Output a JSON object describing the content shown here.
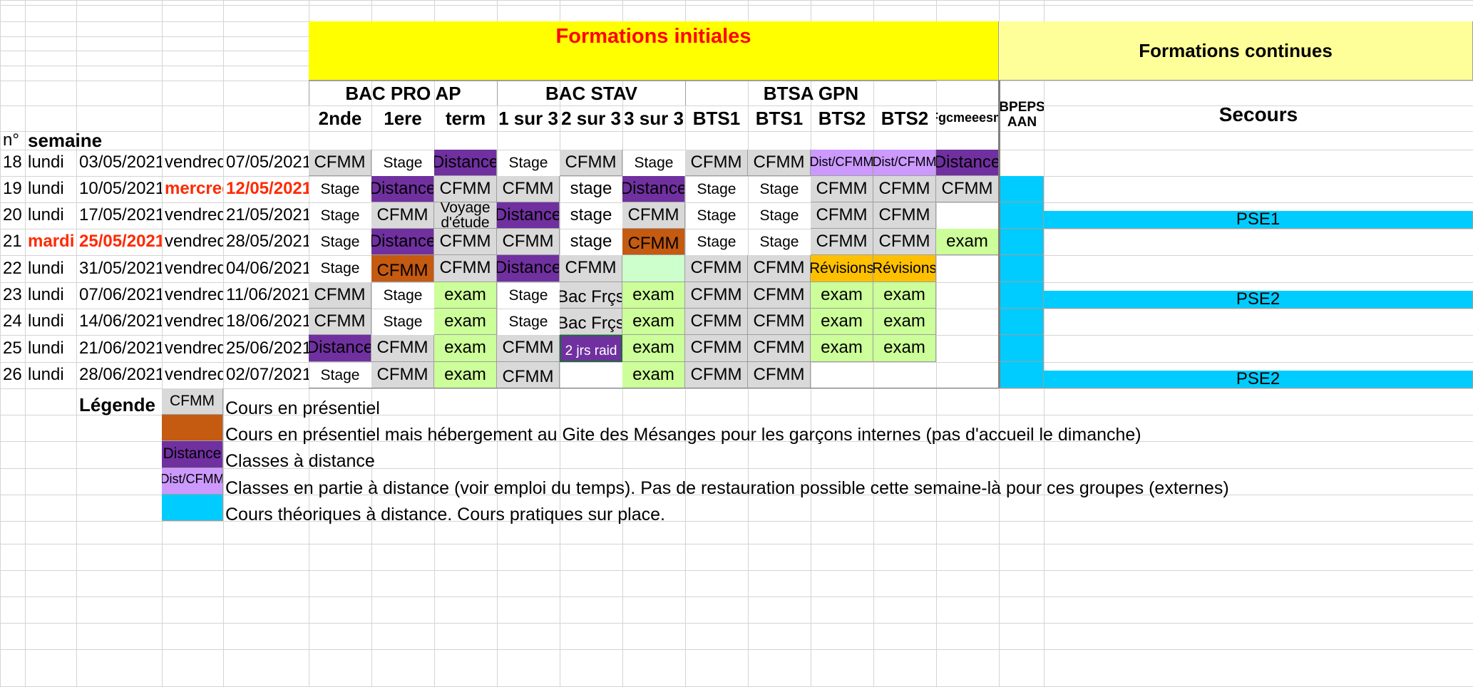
{
  "title_initiales": "Formations initiales",
  "title_continues": "Formations continues",
  "group_headers": [
    "BAC PRO AP",
    "BAC STAV",
    "BTSA GPN"
  ],
  "sub_headers": [
    "2nde",
    "1ere",
    "term",
    "1 sur 3",
    "2 sur 3",
    "3 sur 3",
    "BTS1",
    "BTS1",
    "BTS2",
    "BTS2",
    "Fgcmeeesm"
  ],
  "continues_headers": [
    "BPEPS AAN",
    "Secours"
  ],
  "label_n": "n°",
  "label_semaine": "semaine",
  "colors": {
    "CFMM": "#d9d9d9",
    "Distance": "#7030a0",
    "DistCFMM": "#cc99ff",
    "Gite": "#c55a11",
    "Exam": "#ccff99",
    "Revisions": "#ffc000",
    "Light": "#ccffcc",
    "Theorique": "#00ccff",
    "Header": "#ffff00",
    "Continues": "#ffff99"
  },
  "rows": [
    {
      "n": "18",
      "day1": "lundi",
      "date1": "03/05/2021",
      "day2": "vendredi",
      "date2": "07/05/2021",
      "cells": [
        [
          "CFMM",
          "CFMM"
        ],
        [
          "Stage",
          ""
        ],
        [
          "Distance",
          "Distance"
        ],
        [
          "Stage",
          ""
        ],
        [
          "CFMM",
          "CFMM"
        ],
        [
          "Stage",
          ""
        ],
        [
          "CFMM",
          "CFMM"
        ],
        [
          "CFMM",
          "CFMM"
        ],
        [
          "Dist/CFMM",
          "DistCFMM"
        ],
        [
          "Dist/CFMM",
          "DistCFMM"
        ],
        [
          "Distance",
          "Distance"
        ]
      ],
      "bpeps": "",
      "secours": ""
    },
    {
      "n": "19",
      "day1": "lundi",
      "date1": "10/05/2021",
      "day2": "mercred",
      "date2": "12/05/2021",
      "red2": true,
      "cells": [
        [
          "Stage",
          ""
        ],
        [
          "Distance",
          "Distance"
        ],
        [
          "CFMM",
          "CFMM"
        ],
        [
          "CFMM",
          "CFMM"
        ],
        [
          "stage",
          ""
        ],
        [
          "Distance",
          "Distance"
        ],
        [
          "Stage",
          ""
        ],
        [
          "Stage",
          ""
        ],
        [
          "CFMM",
          "CFMM"
        ],
        [
          "CFMM",
          "CFMM"
        ],
        [
          "CFMM",
          "CFMM"
        ]
      ],
      "bpeps": "Theorique",
      "secours": ""
    },
    {
      "n": "20",
      "day1": "lundi",
      "date1": "17/05/2021",
      "day2": "vendredi",
      "date2": "21/05/2021",
      "cells": [
        [
          "Stage",
          ""
        ],
        [
          "CFMM",
          "CFMM"
        ],
        [
          "Voyage d'étude",
          "CFMM"
        ],
        [
          "Distance",
          "Distance"
        ],
        [
          "stage",
          ""
        ],
        [
          "CFMM",
          "CFMM"
        ],
        [
          "Stage",
          ""
        ],
        [
          "Stage",
          ""
        ],
        [
          "CFMM",
          "CFMM"
        ],
        [
          "CFMM",
          "CFMM"
        ],
        [
          "",
          ""
        ]
      ],
      "bpeps": "Theorique",
      "secours": "PSE1"
    },
    {
      "n": "21",
      "day1": "mardi",
      "date1": "25/05/2021",
      "day2": "vendredi",
      "date2": "28/05/2021",
      "red1": true,
      "cells": [
        [
          "Stage",
          ""
        ],
        [
          "Distance",
          "Distance"
        ],
        [
          "CFMM",
          "CFMM"
        ],
        [
          "CFMM",
          "CFMM"
        ],
        [
          "stage",
          ""
        ],
        [
          "CFMM",
          "Gite"
        ],
        [
          "Stage",
          ""
        ],
        [
          "Stage",
          ""
        ],
        [
          "CFMM",
          "CFMM"
        ],
        [
          "CFMM",
          "CFMM"
        ],
        [
          "exam",
          "Exam"
        ]
      ],
      "bpeps": "Theorique",
      "secours": ""
    },
    {
      "n": "22",
      "day1": "lundi",
      "date1": "31/05/2021",
      "day2": "vendredi",
      "date2": "04/06/2021",
      "cells": [
        [
          "Stage",
          ""
        ],
        [
          "CFMM",
          "Gite"
        ],
        [
          "CFMM",
          "CFMM"
        ],
        [
          "Distance",
          "Distance"
        ],
        [
          "CFMM",
          "CFMM"
        ],
        [
          "",
          "Light"
        ],
        [
          "CFMM",
          "CFMM"
        ],
        [
          "CFMM",
          "CFMM"
        ],
        [
          "Révisions",
          "Revisions"
        ],
        [
          "Révisions",
          "Revisions"
        ],
        [
          "",
          ""
        ]
      ],
      "bpeps": "Theorique",
      "secours": ""
    },
    {
      "n": "23",
      "day1": "lundi",
      "date1": "07/06/2021",
      "day2": "vendredi",
      "date2": "11/06/2021",
      "cells": [
        [
          "CFMM",
          "CFMM"
        ],
        [
          "Stage",
          ""
        ],
        [
          "exam",
          "Exam"
        ],
        [
          "Stage",
          ""
        ],
        [
          "Bac Frçs",
          "CFMM"
        ],
        [
          "exam",
          "Exam"
        ],
        [
          "CFMM",
          "CFMM"
        ],
        [
          "CFMM",
          "CFMM"
        ],
        [
          "exam",
          "Exam"
        ],
        [
          "exam",
          "Exam"
        ],
        [
          "",
          ""
        ]
      ],
      "bpeps": "Theorique",
      "secours": "PSE2"
    },
    {
      "n": "24",
      "day1": "lundi",
      "date1": "14/06/2021",
      "day2": "vendredi",
      "date2": "18/06/2021",
      "cells": [
        [
          "CFMM",
          "CFMM"
        ],
        [
          "Stage",
          ""
        ],
        [
          "exam",
          "Exam"
        ],
        [
          "Stage",
          ""
        ],
        [
          "Bac Frçs",
          "CFMM"
        ],
        [
          "exam",
          "Exam"
        ],
        [
          "CFMM",
          "CFMM"
        ],
        [
          "CFMM",
          "CFMM"
        ],
        [
          "exam",
          "Exam"
        ],
        [
          "exam",
          "Exam"
        ],
        [
          "",
          ""
        ]
      ],
      "bpeps": "Theorique",
      "secours": ""
    },
    {
      "n": "25",
      "day1": "lundi",
      "date1": "21/06/2021",
      "day2": "vendredi",
      "date2": "25/06/2021",
      "cells": [
        [
          "Distance",
          "Distance"
        ],
        [
          "CFMM",
          "CFMM"
        ],
        [
          "exam",
          "Exam"
        ],
        [
          "CFMM",
          "CFMM"
        ],
        [
          "2 jrs raid",
          "Distance"
        ],
        [
          "exam",
          "Exam"
        ],
        [
          "CFMM",
          "CFMM"
        ],
        [
          "CFMM",
          "CFMM"
        ],
        [
          "exam",
          "Exam"
        ],
        [
          "exam",
          "Exam"
        ],
        [
          "",
          ""
        ]
      ],
      "bpeps": "Theorique",
      "secours": ""
    },
    {
      "n": "26",
      "day1": "lundi",
      "date1": "28/06/2021",
      "day2": "vendredi",
      "date2": "02/07/2021",
      "cells": [
        [
          "Stage",
          ""
        ],
        [
          "CFMM",
          "CFMM"
        ],
        [
          "exam",
          "Exam"
        ],
        [
          "CFMM",
          "CFMM"
        ],
        [
          "",
          ""
        ],
        [
          "exam",
          "Exam"
        ],
        [
          "CFMM",
          "CFMM"
        ],
        [
          "CFMM",
          "CFMM"
        ],
        [
          "",
          ""
        ],
        [
          "",
          ""
        ],
        [
          "",
          ""
        ]
      ],
      "bpeps": "Theorique",
      "secours": "PSE2"
    }
  ],
  "legend": {
    "title": "Légende",
    "items": [
      {
        "swatch": "CFMM",
        "swatch_label": "CFMM",
        "text": "Cours en présentiel"
      },
      {
        "swatch": "Gite",
        "swatch_label": "",
        "text": "Cours en présentiel mais hébergement au Gite des Mésanges pour les garçons internes (pas d'accueil le dimanche)"
      },
      {
        "swatch": "Distance",
        "swatch_label": "Distance",
        "text": "Classes à distance"
      },
      {
        "swatch": "DistCFMM",
        "swatch_label": "Dist/CFMM",
        "text": "Classes en partie à distance (voir emploi du temps). Pas de restauration possible cette semaine-là pour ces groupes (externes)"
      },
      {
        "swatch": "Theorique",
        "swatch_label": "",
        "text": "Cours théoriques à distance. Cours pratiques sur place."
      }
    ]
  }
}
